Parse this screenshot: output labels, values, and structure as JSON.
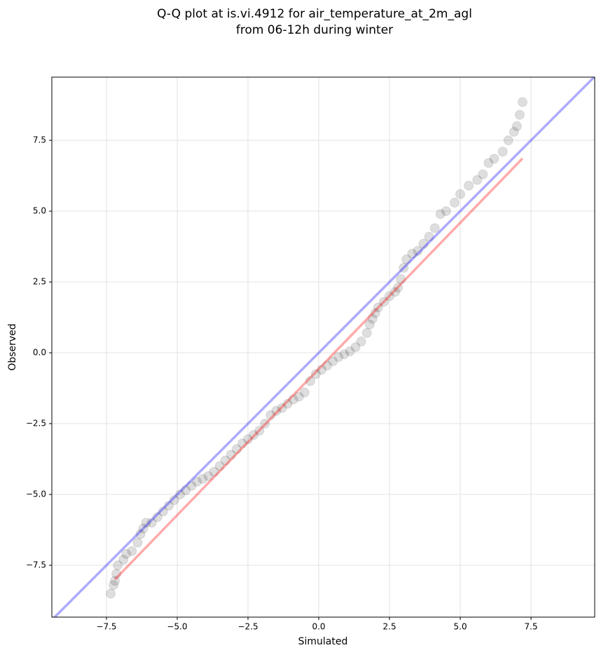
{
  "chart_data": {
    "type": "scatter",
    "title": "Q-Q plot at is.vi.4912 for air_temperature_at_2m_agl",
    "subtitle": "from 06-12h during winter",
    "x_label": "Simulated",
    "y_label": "Observed",
    "xlim": [
      -9.43,
      9.75
    ],
    "ylim": [
      -9.33,
      9.73
    ],
    "xticks": [
      {
        "value": -7.5,
        "label": "−7.5"
      },
      {
        "value": -5,
        "label": "−5.0"
      },
      {
        "value": -2.5,
        "label": "−2.5"
      },
      {
        "value": 0,
        "label": "0.0"
      },
      {
        "value": 2.5,
        "label": "2.5"
      },
      {
        "value": 5,
        "label": "5.0"
      },
      {
        "value": 7.5,
        "label": "7.5"
      }
    ],
    "yticks": [
      {
        "value": -7.5,
        "label": "−7.5"
      },
      {
        "value": -5,
        "label": "−5.0"
      },
      {
        "value": -2.5,
        "label": "−2.5"
      },
      {
        "value": 0,
        "label": "0.0"
      },
      {
        "value": 2.5,
        "label": "2.5"
      },
      {
        "value": 5,
        "label": "5.0"
      },
      {
        "value": 7.5,
        "label": "7.5"
      }
    ],
    "grid": true,
    "series": [
      {
        "color": "#000000",
        "x": [
          -7.35,
          -7.25,
          -7.2,
          -7.15,
          -7.1,
          -6.9,
          -6.8,
          -6.6,
          -6.4,
          -6.3,
          -6.2,
          -6.1,
          -5.9,
          -5.7,
          -5.5,
          -5.3,
          -5.1,
          -4.9,
          -4.7,
          -4.5,
          -4.3,
          -4.1,
          -3.9,
          -3.7,
          -3.5,
          -3.3,
          -3.1,
          -2.9,
          -2.7,
          -2.5,
          -2.3,
          -2.1,
          -1.9,
          -1.7,
          -1.5,
          -1.3,
          -1.1,
          -0.9,
          -0.7,
          -0.5,
          -0.3,
          -0.1,
          0.1,
          0.3,
          0.5,
          0.7,
          0.9,
          1.1,
          1.3,
          1.5,
          1.7,
          1.8,
          1.9,
          2.0,
          2.1,
          2.3,
          2.5,
          2.7,
          2.8,
          2.9,
          3.0,
          3.1,
          3.3,
          3.5,
          3.7,
          3.9,
          4.1,
          4.3,
          4.5,
          4.8,
          5.0,
          5.3,
          5.6,
          5.8,
          6.0,
          6.2,
          6.5,
          6.7,
          6.9,
          7.0,
          7.1,
          7.2
        ],
        "values": [
          -8.5,
          -8.2,
          -8.05,
          -7.8,
          -7.5,
          -7.3,
          -7.1,
          -7.0,
          -6.7,
          -6.4,
          -6.2,
          -6.0,
          -6.0,
          -5.8,
          -5.6,
          -5.4,
          -5.2,
          -5.0,
          -4.85,
          -4.7,
          -4.55,
          -4.45,
          -4.35,
          -4.2,
          -4.0,
          -3.8,
          -3.6,
          -3.4,
          -3.2,
          -3.05,
          -2.9,
          -2.75,
          -2.5,
          -2.2,
          -2.05,
          -1.95,
          -1.8,
          -1.65,
          -1.55,
          -1.4,
          -1.0,
          -0.75,
          -0.6,
          -0.45,
          -0.3,
          -0.15,
          -0.05,
          0.05,
          0.2,
          0.4,
          0.7,
          1.0,
          1.2,
          1.4,
          1.6,
          1.8,
          2.0,
          2.15,
          2.3,
          2.6,
          3.0,
          3.3,
          3.5,
          3.6,
          3.85,
          4.1,
          4.4,
          4.9,
          5.0,
          5.3,
          5.6,
          5.9,
          6.1,
          6.3,
          6.7,
          6.85,
          7.1,
          7.5,
          7.8,
          8.0,
          8.4,
          8.85
        ]
      }
    ],
    "lines": [
      {
        "color": "#0000ff",
        "x": [
          -9.43,
          9.75
        ],
        "values": [
          -9.43,
          9.75
        ]
      },
      {
        "color": "#ff0000",
        "x": [
          -7.2,
          7.2
        ],
        "values": [
          -8.0,
          6.86
        ]
      }
    ]
  }
}
